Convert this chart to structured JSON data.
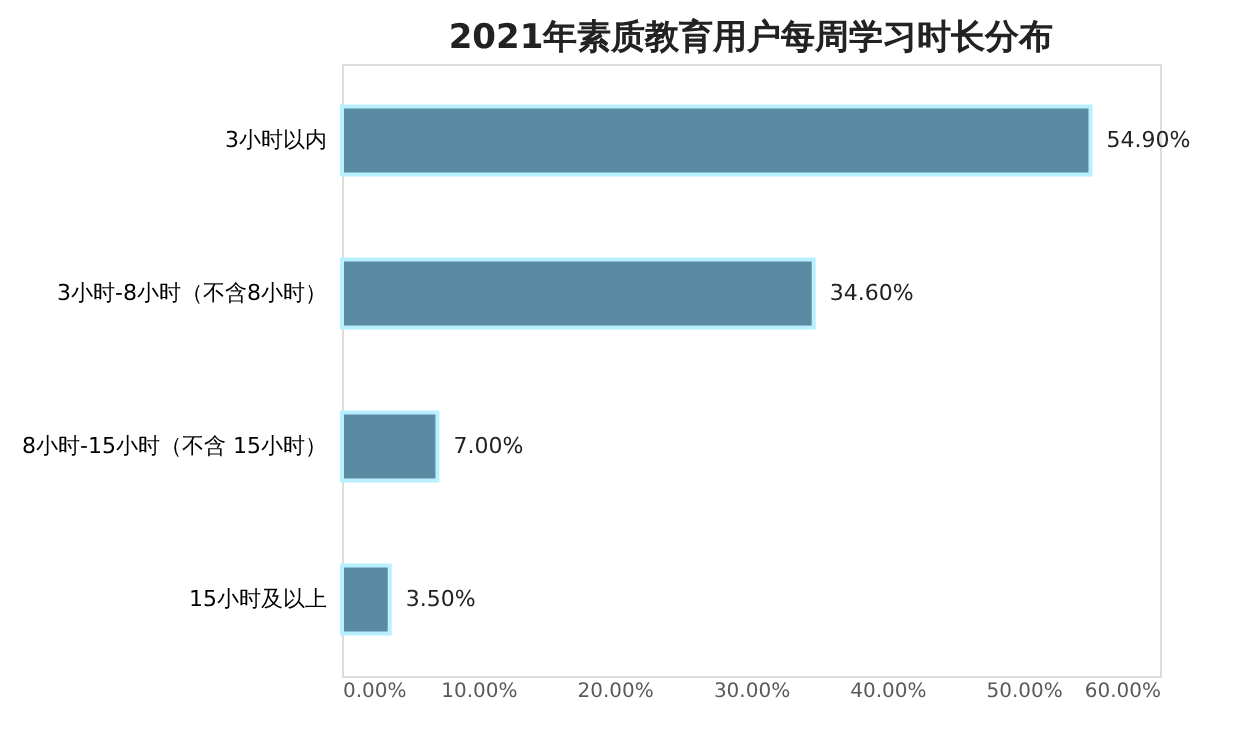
{
  "chart_data": {
    "type": "bar",
    "orientation": "horizontal",
    "title": "2021年素质教育用户每周学习时长分布",
    "categories": [
      "3小时以内",
      "3小时-8小时（不含8小时）",
      "8小时-15小时（不含 15小时）",
      "15小时及以上"
    ],
    "values": [
      54.9,
      34.6,
      7.0,
      3.5
    ],
    "value_labels": [
      "54.90%",
      "34.60%",
      "7.00%",
      "3.50%"
    ],
    "color": "#5b8ba3",
    "xlim": [
      0,
      60
    ],
    "xticks": [
      {
        "value": 0,
        "label": "0.00%"
      },
      {
        "value": 10,
        "label": "10.00%"
      },
      {
        "value": 20,
        "label": "20.00%"
      },
      {
        "value": 30,
        "label": "30.00%"
      },
      {
        "value": 40,
        "label": "40.00%"
      },
      {
        "value": 50,
        "label": "50.00%"
      },
      {
        "value": 60,
        "label": "60.00%"
      }
    ],
    "grid": false
  }
}
